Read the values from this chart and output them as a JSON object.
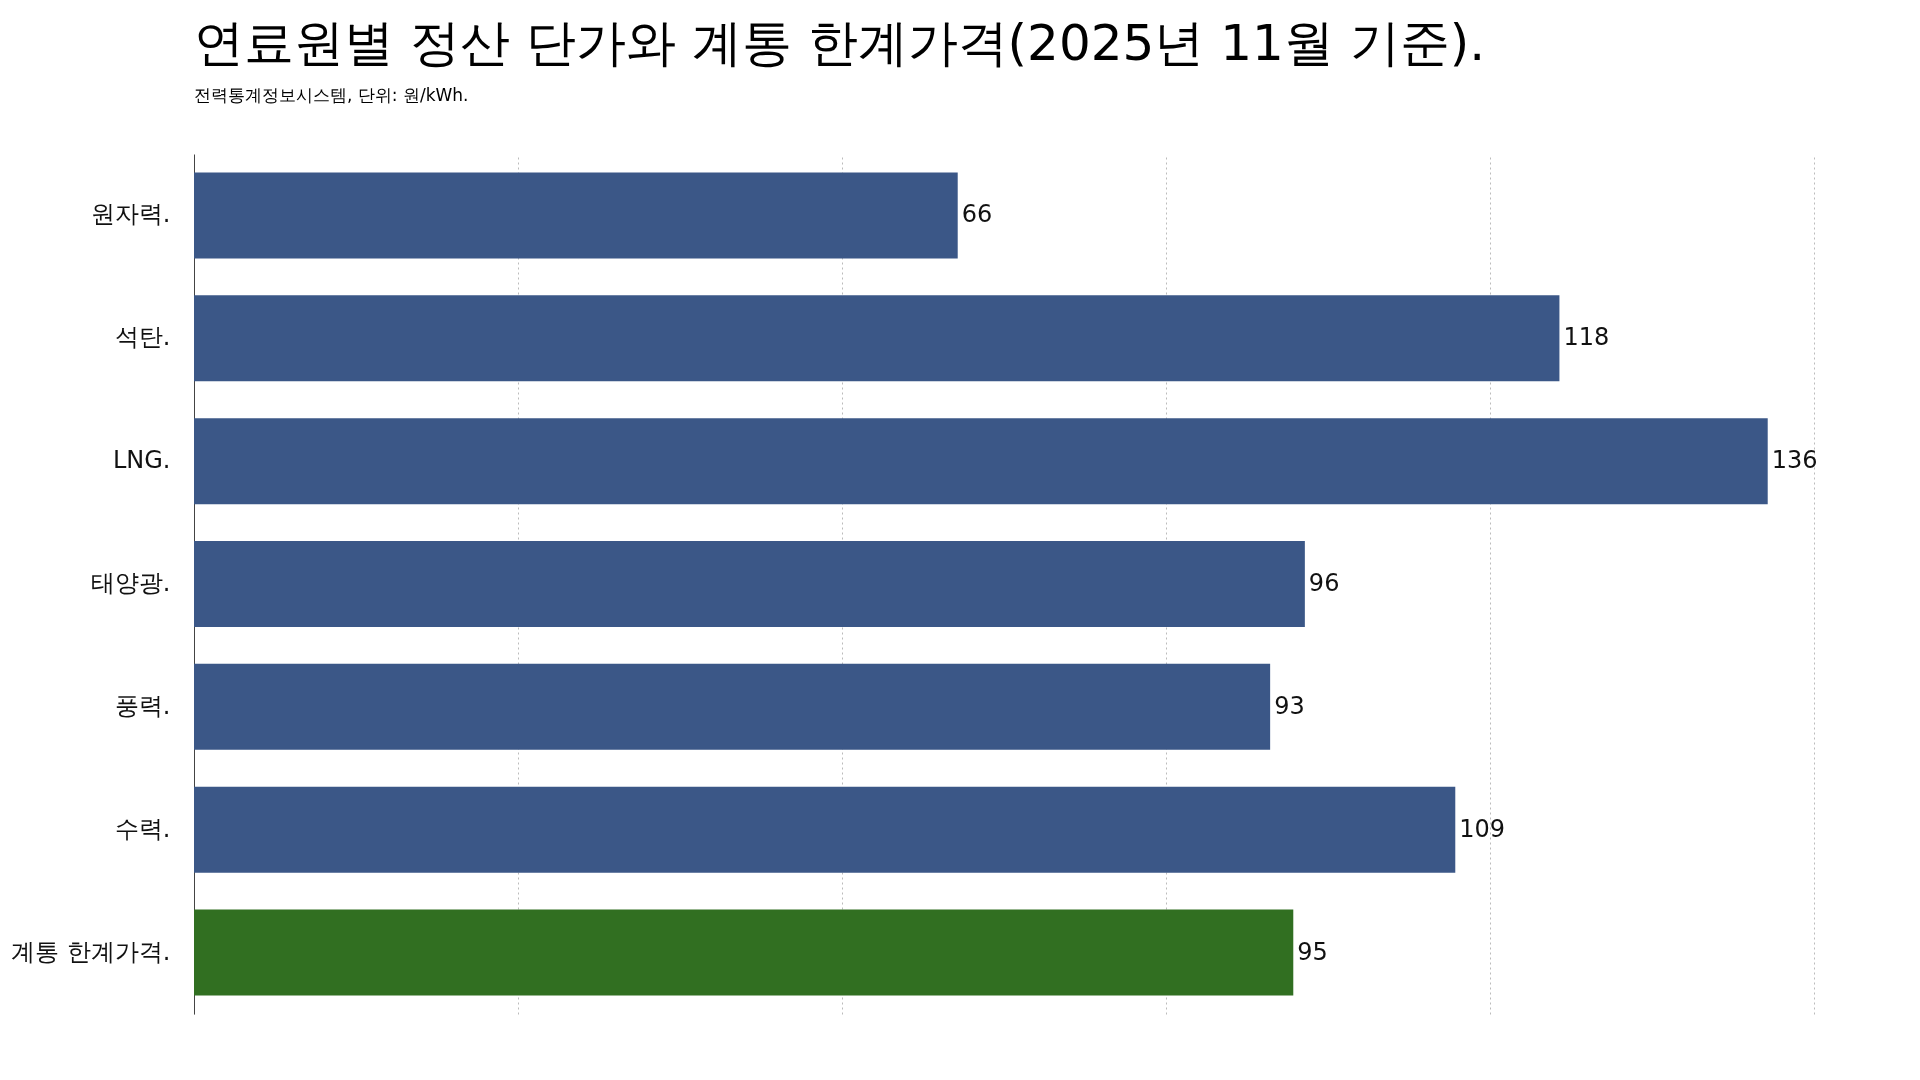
{
  "chart_data": {
    "type": "bar",
    "orientation": "horizontal",
    "title": "연료원별 정산 단가와 계통 한계가격(2025년 11월 기준).",
    "subtitle": "전력통계정보시스템, 단위: 원/kWh.",
    "categories": [
      "원자력.",
      "석탄.",
      "LNG.",
      "태양광.",
      "풍력.",
      "수력.",
      "계통 한계가격."
    ],
    "values": [
      66,
      118,
      136,
      96,
      93,
      109,
      95
    ],
    "colors": [
      "#3b5787",
      "#3b5787",
      "#3b5787",
      "#3b5787",
      "#3b5787",
      "#3b5787",
      "#316f21"
    ],
    "xlim": [
      0,
      140
    ],
    "xticks": [
      {
        "value": 0,
        "label": null
      },
      {
        "value": 28,
        "label": null
      },
      {
        "value": 56,
        "label": null
      },
      {
        "value": 84,
        "label": null
      },
      {
        "value": 112,
        "label": null
      },
      {
        "value": 140,
        "label": null
      }
    ],
    "grid": "x",
    "tick_labels": "y",
    "data_labels": true
  }
}
